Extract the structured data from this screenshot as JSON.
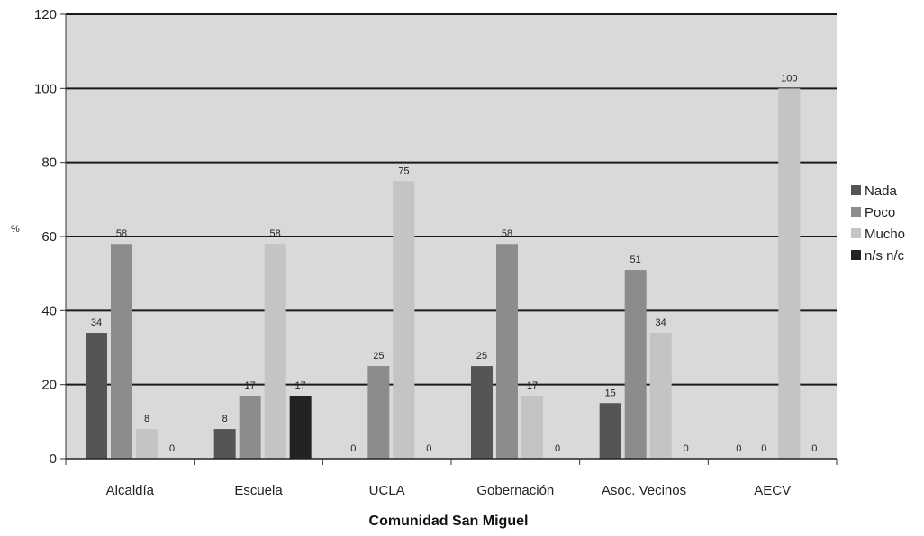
{
  "chart_data": {
    "type": "bar",
    "categories": [
      "Alcaldía",
      "Escuela",
      "UCLA",
      "Gobernación",
      "Asoc. Vecinos",
      "AECV"
    ],
    "series": [
      {
        "name": "Nada",
        "color": "#555555",
        "values": [
          34,
          8,
          0,
          25,
          15,
          0
        ]
      },
      {
        "name": "Poco",
        "color": "#8c8c8c",
        "values": [
          58,
          17,
          25,
          58,
          51,
          0
        ]
      },
      {
        "name": "Mucho",
        "color": "#c4c4c4",
        "values": [
          8,
          58,
          75,
          17,
          34,
          100
        ]
      },
      {
        "name": "n/s n/c",
        "color": "#222222",
        "values": [
          0,
          17,
          0,
          0,
          0,
          0
        ]
      }
    ],
    "data_labels": [
      [
        "34",
        "8",
        "0",
        "25",
        "15",
        "0"
      ],
      [
        "58",
        "17",
        "25",
        "58",
        "51",
        "0"
      ],
      [
        "8",
        "58",
        "75",
        "17",
        "34",
        "100"
      ],
      [
        "0",
        "17",
        "0",
        "0",
        "0",
        "0"
      ]
    ],
    "title": "",
    "xlabel": "Comunidad San Miguel",
    "ylabel": "%",
    "ylim": [
      0,
      120
    ],
    "yticks": [
      "0",
      "20",
      "40",
      "60",
      "80",
      "100",
      "120"
    ],
    "grid": true,
    "legend_position": "right",
    "plot_background": "#d9d9d9"
  }
}
